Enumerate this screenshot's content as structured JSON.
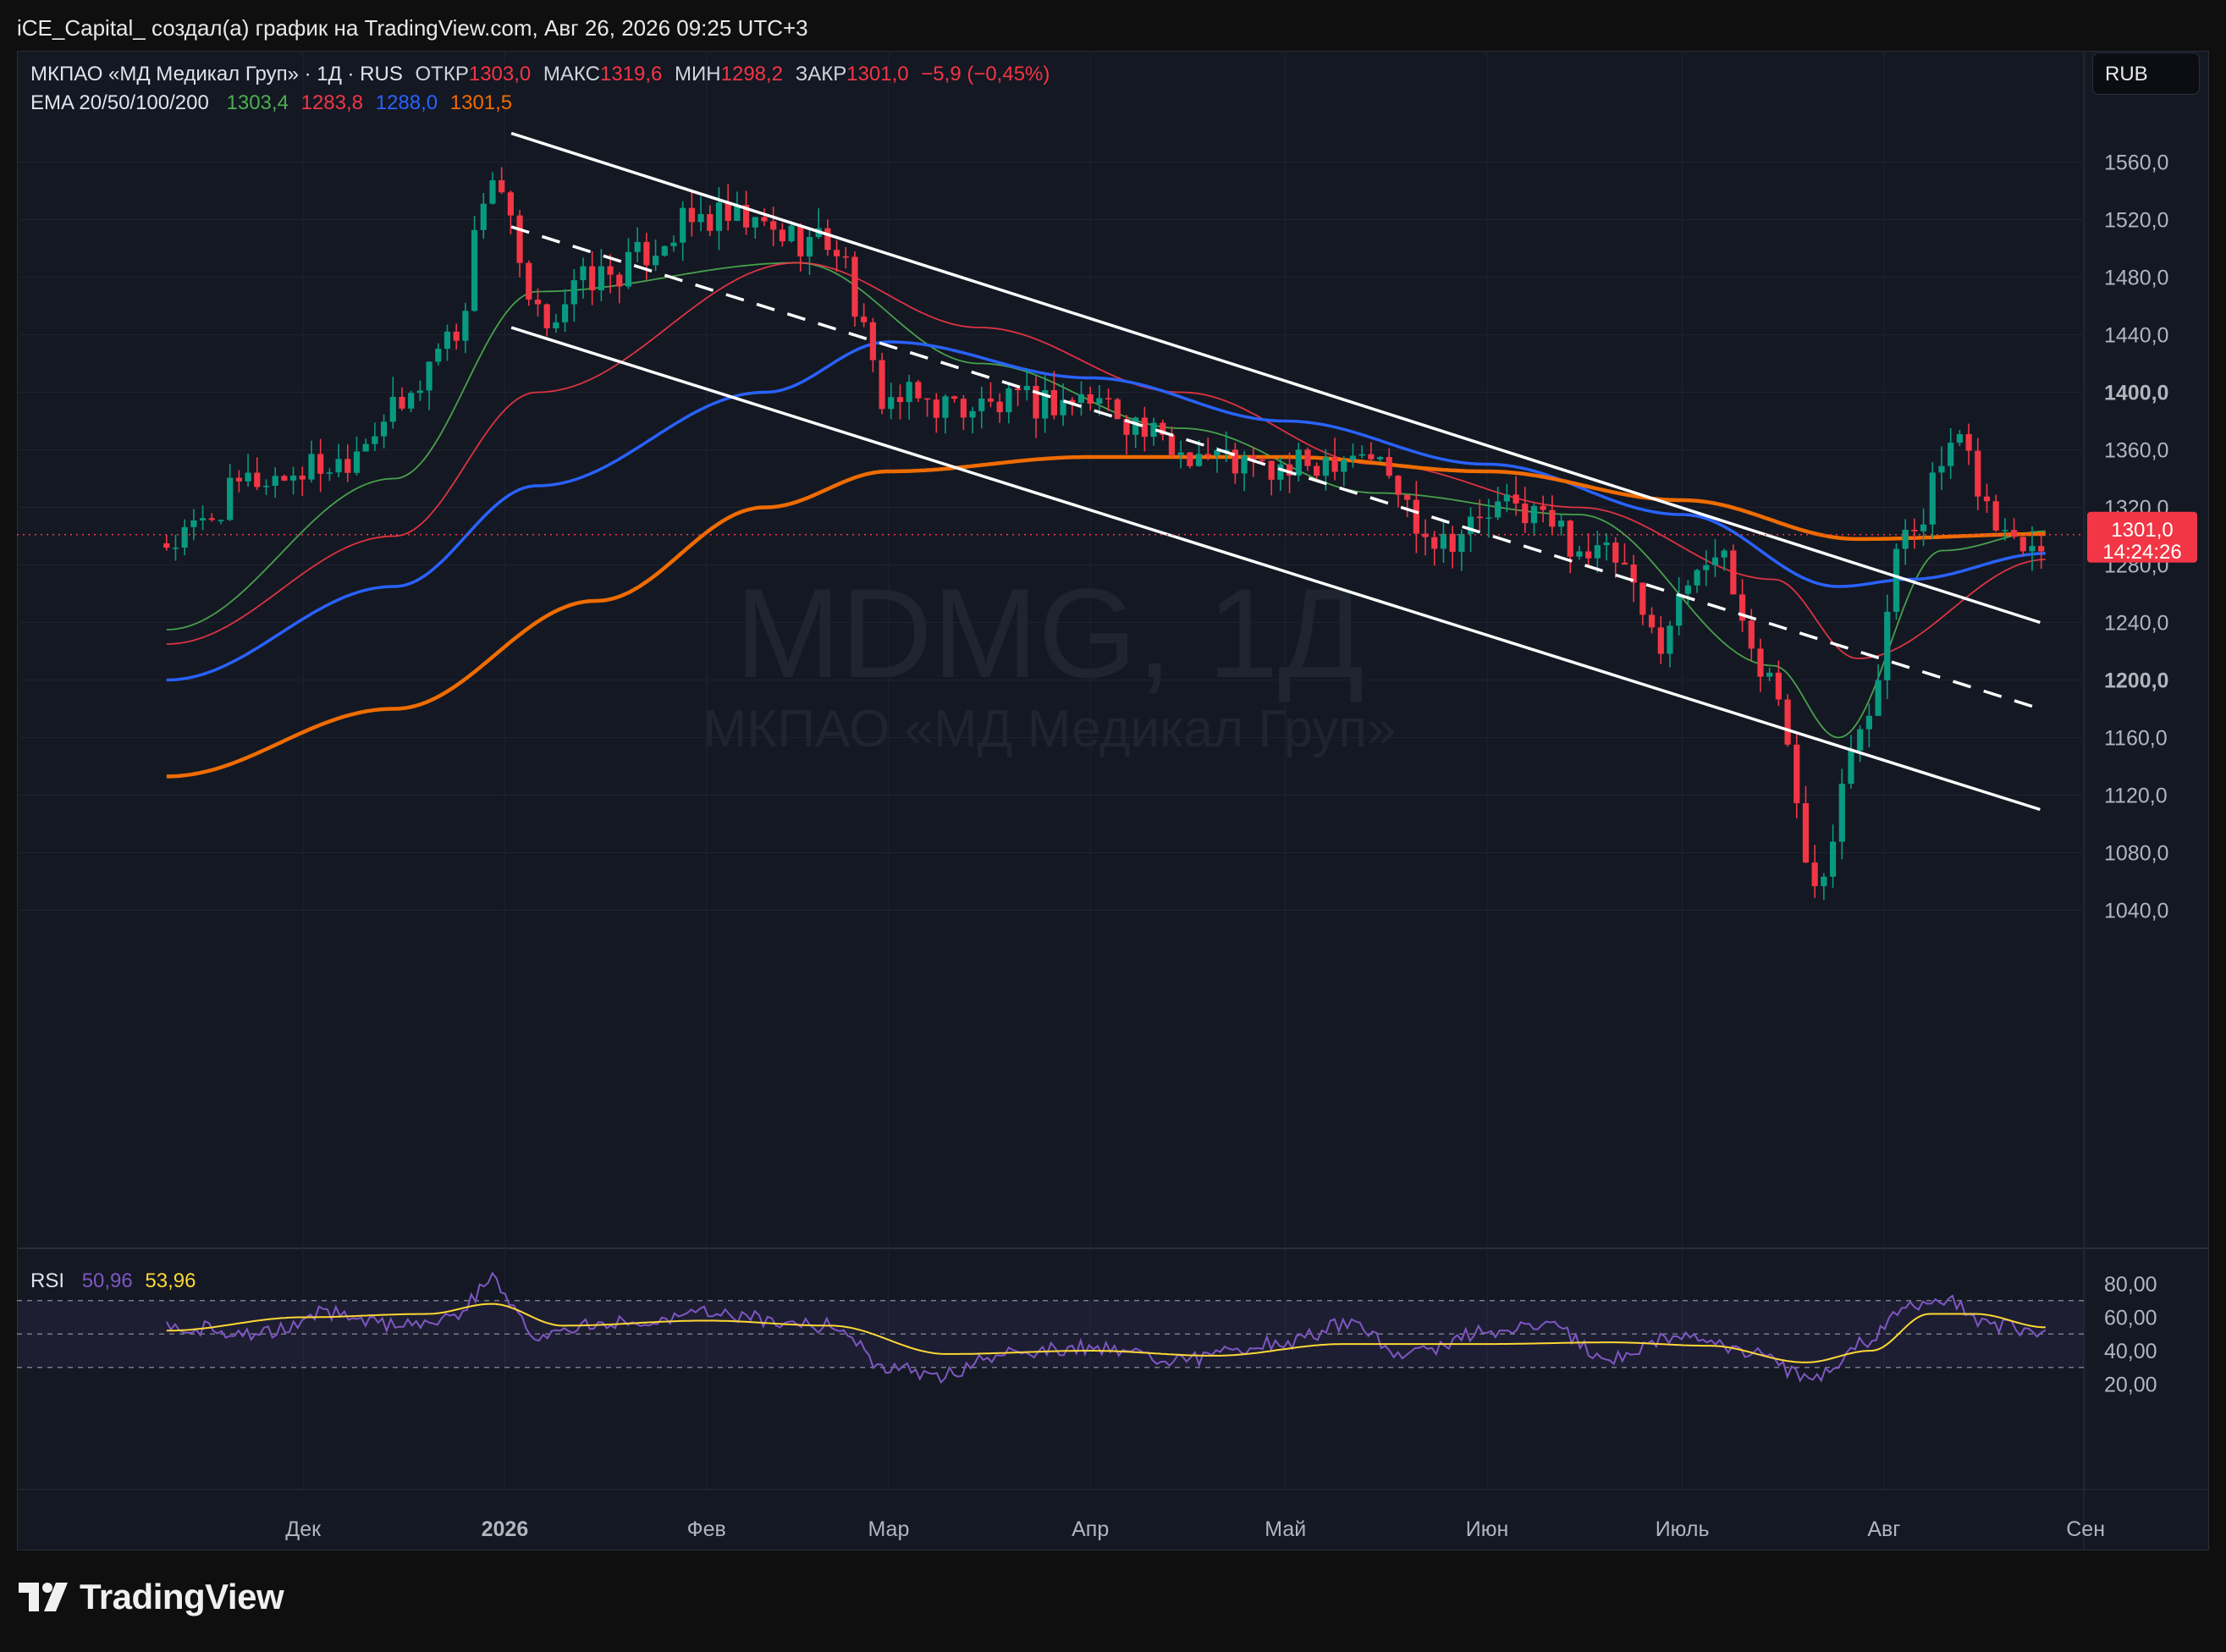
{
  "caption": "iCE_Capital_ создал(а) график на TradingView.com, Авг 26, 2026 09:25 UTC+3",
  "legend": {
    "symbol_line": "МКПАО «МД Медикал Груп» · 1Д · RUS",
    "open_label": "ОТКР",
    "open": "1303,0",
    "high_label": "МАКС",
    "high": "1319,6",
    "low_label": "МИН",
    "low": "1298,2",
    "close_label": "ЗАКР",
    "close": "1301,0",
    "change": "−5,9 (−0,45%)",
    "ema_label": "EMA 20/50/100/200",
    "ema20": "1303,4",
    "ema50": "1283,8",
    "ema100": "1288,0",
    "ema200": "1301,5",
    "rsi_label": "RSI",
    "rsi": "50,96",
    "rsi_ma": "53,96"
  },
  "currency_button": "RUB",
  "watermark": {
    "ticker": "MDMG, 1Д",
    "name": "МКПАО «МД Медикал Груп»"
  },
  "price_label": {
    "value": "1301,0",
    "countdown": "14:24:26"
  },
  "footer": {
    "brand": "TradingView"
  },
  "colors": {
    "background": "#141823",
    "up": "#089981",
    "down": "#f23645",
    "ema20": "#4caf50",
    "ema50": "#f23645",
    "ema100": "#2962ff",
    "ema200": "#ef6c00",
    "rsi": "#7e57c2",
    "rsi_ma": "#fdd835",
    "channel": "#ffffff"
  },
  "chart_data": [
    {
      "type": "candlestick",
      "title": "МКПАО «МД Медикал Груп» · 1Д · RUS",
      "ylabel": "RUB",
      "ylim": [
        1010,
        1590
      ],
      "y_ticks": [
        1040,
        1080,
        1120,
        1160,
        1200,
        1240,
        1280,
        1320,
        1360,
        1400,
        1440,
        1480,
        1520,
        1560
      ],
      "y_tick_labels": [
        "1040,0",
        "1080,0",
        "1120,0",
        "1160,0",
        "1200,0",
        "1240,0",
        "1280,0",
        "1320,0",
        "1360,0",
        "1400,0",
        "1440,0",
        "1480,0",
        "1520,0",
        "1560,0"
      ],
      "x_tick_labels": [
        "Дек",
        "2026",
        "Фев",
        "Мар",
        "Апр",
        "Май",
        "Июн",
        "Июль",
        "Авг",
        "Сен"
      ],
      "last_price": 1301.0,
      "price_anchors": [
        {
          "date": "2025-11-10",
          "close": 1295
        },
        {
          "date": "2025-11-25",
          "close": 1340
        },
        {
          "date": "2025-12-05",
          "close": 1350
        },
        {
          "date": "2025-12-15",
          "close": 1385
        },
        {
          "date": "2025-12-24",
          "close": 1440
        },
        {
          "date": "2025-12-30",
          "close": 1550
        },
        {
          "date": "2026-01-06",
          "close": 1450
        },
        {
          "date": "2026-01-15",
          "close": 1480
        },
        {
          "date": "2026-02-01",
          "close": 1520
        },
        {
          "date": "2026-02-20",
          "close": 1505
        },
        {
          "date": "2026-03-01",
          "close": 1395
        },
        {
          "date": "2026-03-15",
          "close": 1390
        },
        {
          "date": "2026-04-01",
          "close": 1395
        },
        {
          "date": "2026-04-15",
          "close": 1360
        },
        {
          "date": "2026-04-30",
          "close": 1345
        },
        {
          "date": "2026-05-12",
          "close": 1360
        },
        {
          "date": "2026-05-25",
          "close": 1300
        },
        {
          "date": "2026-06-05",
          "close": 1320
        },
        {
          "date": "2026-06-20",
          "close": 1285
        },
        {
          "date": "2026-06-27",
          "close": 1230
        },
        {
          "date": "2026-07-05",
          "close": 1290
        },
        {
          "date": "2026-07-15",
          "close": 1200
        },
        {
          "date": "2026-07-21",
          "close": 1060
        },
        {
          "date": "2026-07-29",
          "close": 1180
        },
        {
          "date": "2026-08-05",
          "close": 1310
        },
        {
          "date": "2026-08-12",
          "close": 1360
        },
        {
          "date": "2026-08-20",
          "close": 1300
        },
        {
          "date": "2026-08-26",
          "close": 1301
        }
      ],
      "ema_anchors": [
        {
          "name": "EMA 20",
          "points": [
            [
              "2025-11-10",
              1235
            ],
            [
              "2025-12-15",
              1340
            ],
            [
              "2026-01-06",
              1470
            ],
            [
              "2026-02-15",
              1490
            ],
            [
              "2026-03-15",
              1420
            ],
            [
              "2026-04-15",
              1375
            ],
            [
              "2026-05-15",
              1330
            ],
            [
              "2026-06-15",
              1315
            ],
            [
              "2026-07-15",
              1210
            ],
            [
              "2026-07-25",
              1160
            ],
            [
              "2026-08-10",
              1290
            ],
            [
              "2026-08-26",
              1303.4
            ]
          ]
        },
        {
          "name": "EMA 50",
          "points": [
            [
              "2025-11-10",
              1225
            ],
            [
              "2025-12-15",
              1300
            ],
            [
              "2026-01-06",
              1400
            ],
            [
              "2026-02-15",
              1490
            ],
            [
              "2026-03-15",
              1445
            ],
            [
              "2026-04-15",
              1400
            ],
            [
              "2026-05-15",
              1350
            ],
            [
              "2026-06-15",
              1320
            ],
            [
              "2026-07-15",
              1270
            ],
            [
              "2026-07-28",
              1215
            ],
            [
              "2026-08-26",
              1283.8
            ]
          ]
        },
        {
          "name": "EMA 100",
          "points": [
            [
              "2025-11-10",
              1200
            ],
            [
              "2025-12-15",
              1265
            ],
            [
              "2026-01-06",
              1335
            ],
            [
              "2026-02-10",
              1400
            ],
            [
              "2026-03-01",
              1435
            ],
            [
              "2026-04-01",
              1410
            ],
            [
              "2026-05-01",
              1380
            ],
            [
              "2026-06-01",
              1350
            ],
            [
              "2026-07-01",
              1315
            ],
            [
              "2026-07-25",
              1265
            ],
            [
              "2026-08-05",
              1270
            ],
            [
              "2026-08-26",
              1288.0
            ]
          ]
        },
        {
          "name": "EMA 200",
          "points": [
            [
              "2025-11-10",
              1133
            ],
            [
              "2025-12-15",
              1180
            ],
            [
              "2026-01-15",
              1255
            ],
            [
              "2026-02-10",
              1320
            ],
            [
              "2026-03-01",
              1345
            ],
            [
              "2026-04-01",
              1355
            ],
            [
              "2026-05-01",
              1355
            ],
            [
              "2026-06-01",
              1345
            ],
            [
              "2026-07-01",
              1325
            ],
            [
              "2026-07-28",
              1298
            ],
            [
              "2026-08-26",
              1301.5
            ]
          ]
        }
      ],
      "channel": {
        "upper": [
          [
            "2026-01-02",
            1580
          ],
          [
            "2026-08-25",
            1240
          ]
        ],
        "middle": [
          [
            "2026-01-02",
            1515
          ],
          [
            "2026-08-25",
            1180
          ]
        ],
        "lower": [
          [
            "2026-01-02",
            1445
          ],
          [
            "2026-08-25",
            1110
          ]
        ]
      }
    },
    {
      "type": "line",
      "title": "RSI",
      "ylim": [
        15,
        85
      ],
      "y_ticks": [
        20,
        40,
        60,
        80
      ],
      "y_tick_labels": [
        "20,00",
        "40,00",
        "60,00",
        "80,00"
      ],
      "band": [
        30,
        70
      ],
      "midline": 50,
      "series": [
        {
          "name": "RSI",
          "points": [
            [
              "2025-11-10",
              55
            ],
            [
              "2025-11-25",
              50
            ],
            [
              "2025-12-05",
              63
            ],
            [
              "2025-12-15",
              55
            ],
            [
              "2025-12-24",
              60
            ],
            [
              "2025-12-30",
              82
            ],
            [
              "2026-01-06",
              50
            ],
            [
              "2026-01-20",
              58
            ],
            [
              "2026-02-01",
              62
            ],
            [
              "2026-02-20",
              55
            ],
            [
              "2026-03-01",
              30
            ],
            [
              "2026-03-08",
              25
            ],
            [
              "2026-03-20",
              40
            ],
            [
              "2026-04-01",
              42
            ],
            [
              "2026-04-15",
              35
            ],
            [
              "2026-05-01",
              45
            ],
            [
              "2026-05-10",
              55
            ],
            [
              "2026-05-20",
              38
            ],
            [
              "2026-06-01",
              52
            ],
            [
              "2026-06-10",
              55
            ],
            [
              "2026-06-20",
              35
            ],
            [
              "2026-07-01",
              50
            ],
            [
              "2026-07-10",
              40
            ],
            [
              "2026-07-21",
              23
            ],
            [
              "2026-07-29",
              45
            ],
            [
              "2026-08-05",
              65
            ],
            [
              "2026-08-10",
              70
            ],
            [
              "2026-08-18",
              55
            ],
            [
              "2026-08-26",
              50.96
            ]
          ]
        },
        {
          "name": "RSI MA",
          "points": [
            [
              "2025-11-10",
              52
            ],
            [
              "2025-12-01",
              60
            ],
            [
              "2025-12-20",
              62
            ],
            [
              "2025-12-30",
              68
            ],
            [
              "2026-01-10",
              55
            ],
            [
              "2026-02-01",
              58
            ],
            [
              "2026-02-20",
              55
            ],
            [
              "2026-03-10",
              38
            ],
            [
              "2026-04-01",
              40
            ],
            [
              "2026-04-20",
              37
            ],
            [
              "2026-05-10",
              44
            ],
            [
              "2026-06-01",
              44
            ],
            [
              "2026-06-20",
              45
            ],
            [
              "2026-07-05",
              43
            ],
            [
              "2026-07-20",
              33
            ],
            [
              "2026-07-30",
              40
            ],
            [
              "2026-08-08",
              62
            ],
            [
              "2026-08-15",
              62
            ],
            [
              "2026-08-26",
              53.96
            ]
          ]
        }
      ]
    }
  ]
}
